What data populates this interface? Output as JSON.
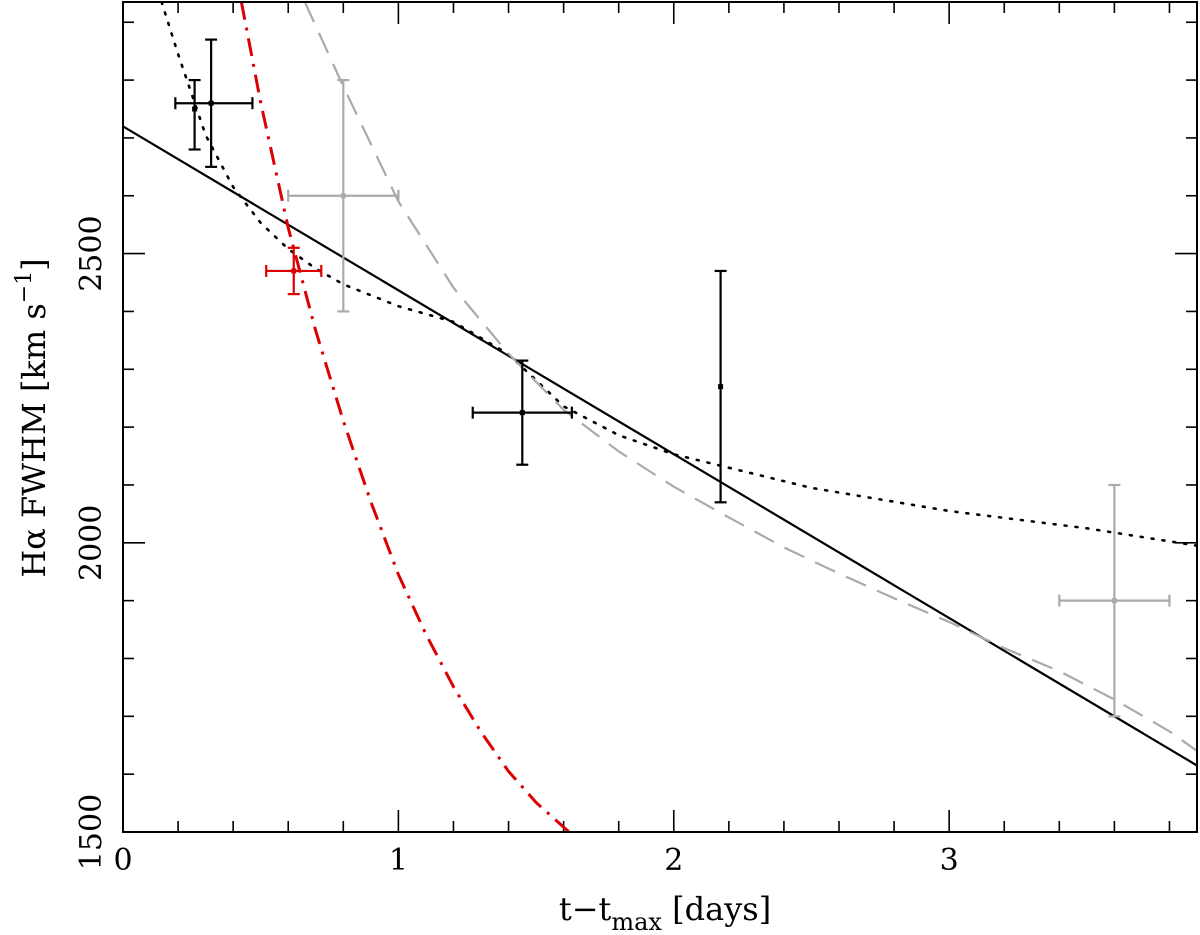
{
  "chart_data": {
    "type": "scatter",
    "xlabel": "t−t",
    "xlabel_sub": "max",
    "xlabel_tail": " [days]",
    "ylabel": "Hα FWHM [km s",
    "ylabel_sup": "−1",
    "ylabel_tail": "]",
    "xlim": [
      0,
      3.9
    ],
    "ylim": [
      1500,
      2935
    ],
    "x_ticks": [
      {
        "value": 0,
        "label": "0"
      },
      {
        "value": 1,
        "label": "1"
      },
      {
        "value": 2,
        "label": "2"
      },
      {
        "value": 3,
        "label": "3"
      }
    ],
    "y_ticks": [
      {
        "value": 1500,
        "label": "1500"
      },
      {
        "value": 2000,
        "label": "2000"
      },
      {
        "value": 2500,
        "label": "2500"
      }
    ],
    "x_minor_step": 0.2,
    "y_minor_step": 100,
    "colors": {
      "black": "#000000",
      "red": "#dd0000",
      "gray": "#aaaaaa"
    },
    "series": [
      {
        "name": "black-points",
        "color": "#000000",
        "points": [
          {
            "x": 0.26,
            "y": 2750,
            "xerr_lo": 0.0,
            "xerr_hi": 0.0,
            "yerr_lo": 70,
            "yerr_hi": 50
          },
          {
            "x": 0.32,
            "y": 2760,
            "xerr_lo": 0.13,
            "xerr_hi": 0.15,
            "yerr_lo": 110,
            "yerr_hi": 110
          },
          {
            "x": 1.45,
            "y": 2225,
            "xerr_lo": 0.18,
            "xerr_hi": 0.18,
            "yerr_lo": 90,
            "yerr_hi": 90
          },
          {
            "x": 2.17,
            "y": 2270,
            "xerr_lo": 0.0,
            "xerr_hi": 0.0,
            "yerr_lo": 200,
            "yerr_hi": 200
          }
        ]
      },
      {
        "name": "red-points",
        "color": "#dd0000",
        "points": [
          {
            "x": 0.62,
            "y": 2470,
            "xerr_lo": 0.1,
            "xerr_hi": 0.1,
            "yerr_lo": 40,
            "yerr_hi": 40
          }
        ]
      },
      {
        "name": "gray-points",
        "color": "#aaaaaa",
        "points": [
          {
            "x": 0.8,
            "y": 2600,
            "xerr_lo": 0.2,
            "xerr_hi": 0.2,
            "yerr_lo": 200,
            "yerr_hi": 200
          },
          {
            "x": 3.6,
            "y": 1900,
            "xerr_lo": 0.2,
            "xerr_hi": 0.2,
            "yerr_lo": 200,
            "yerr_hi": 200
          }
        ]
      }
    ],
    "curves": [
      {
        "name": "linear-fit",
        "style": "solid",
        "color": "#000000",
        "x": [
          0,
          3.9
        ],
        "y": [
          2720,
          1615
        ]
      },
      {
        "name": "dotted-fit",
        "style": "dotted",
        "color": "#000000",
        "x": [
          0.14,
          0.2,
          0.3,
          0.4,
          0.5,
          0.6,
          0.7,
          0.8,
          1.0,
          1.2,
          1.4,
          1.6,
          1.8,
          2.0,
          2.5,
          3.0,
          3.5,
          3.9
        ],
        "y": [
          2935,
          2845,
          2705,
          2615,
          2553,
          2508,
          2474,
          2447,
          2409,
          2382,
          2326,
          2236,
          2186,
          2153,
          2095,
          2055,
          2025,
          1995
        ]
      },
      {
        "name": "gray-dashed-fit",
        "style": "dashed",
        "color": "#aaaaaa",
        "x": [
          0.66,
          0.8,
          1.0,
          1.2,
          1.4,
          1.6,
          1.8,
          2.0,
          2.2,
          2.4,
          2.6,
          2.8,
          3.0,
          3.2,
          3.4,
          3.6,
          3.8,
          3.9
        ],
        "y": [
          2935,
          2789,
          2590,
          2441,
          2327,
          2230,
          2158,
          2097,
          2044,
          1992,
          1947,
          1904,
          1863,
          1818,
          1778,
          1729,
          1674,
          1640
        ]
      },
      {
        "name": "red-dashdot-fit",
        "style": "dashdot",
        "color": "#dd0000",
        "x": [
          0.43,
          0.5,
          0.6,
          0.7,
          0.8,
          0.9,
          1.0,
          1.1,
          1.2,
          1.3,
          1.4,
          1.5,
          1.62
        ],
        "y": [
          2935,
          2761,
          2545,
          2366,
          2211,
          2071,
          1945,
          1842,
          1751,
          1673,
          1605,
          1551,
          1500
        ]
      }
    ]
  }
}
